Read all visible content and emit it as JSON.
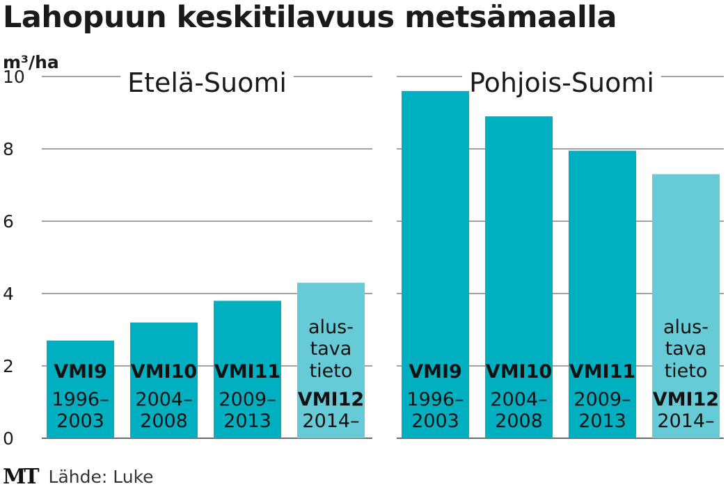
{
  "title": "Lahopuun keskitilavuus metsämaalla",
  "logo": "MT",
  "source": "Lähde: Luke",
  "colors": {
    "bar": "#00b0c0",
    "bar_preliminary": "#66cbd6",
    "grid": "#6b6b6b",
    "text": "#1a1a1a"
  },
  "chart_data": {
    "type": "bar",
    "ylabel": "m³/ha",
    "ylim": [
      0,
      10
    ],
    "yticks": [
      0,
      2,
      4,
      6,
      8,
      10
    ],
    "grid": true,
    "panels": [
      {
        "title": "Etelä-Suomi",
        "bars": [
          {
            "values_key": "VMI9",
            "name": "VMI9",
            "period_start": "1996–",
            "period_end": "2003",
            "value": 2.7,
            "preliminary": false
          },
          {
            "values_key": "VMI10",
            "name": "VMI10",
            "period_start": "2004–",
            "period_end": "2008",
            "value": 3.2,
            "preliminary": false
          },
          {
            "values_key": "VMI11",
            "name": "VMI11",
            "period_start": "2009–",
            "period_end": "2013",
            "value": 3.8,
            "preliminary": false
          },
          {
            "values_key": "VMI12",
            "name": "VMI12",
            "period_start": "2014–",
            "period_end": "",
            "value": 4.3,
            "preliminary": true,
            "note": [
              "alus-",
              "tava",
              "tieto"
            ]
          }
        ]
      },
      {
        "title": "Pohjois-Suomi",
        "bars": [
          {
            "values_key": "VMI9",
            "name": "VMI9",
            "period_start": "1996–",
            "period_end": "2003",
            "value": 9.6,
            "preliminary": false
          },
          {
            "values_key": "VMI10",
            "name": "VMI10",
            "period_start": "2004–",
            "period_end": "2008",
            "value": 8.9,
            "preliminary": false
          },
          {
            "values_key": "VMI11",
            "name": "VMI11",
            "period_start": "2009–",
            "period_end": "2013",
            "value": 7.95,
            "preliminary": false
          },
          {
            "values_key": "VMI12",
            "name": "VMI12",
            "period_start": "2014–",
            "period_end": "",
            "value": 7.3,
            "preliminary": true,
            "note": [
              "alus-",
              "tava",
              "tieto"
            ]
          }
        ]
      }
    ]
  }
}
